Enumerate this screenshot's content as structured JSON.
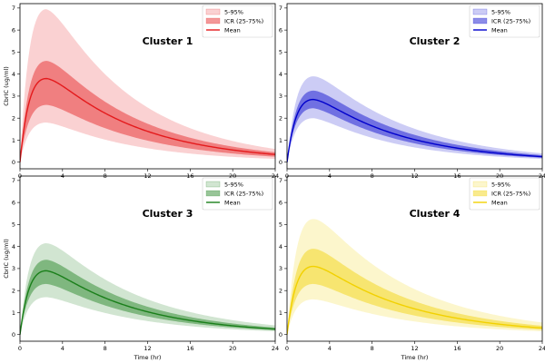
{
  "chart_data": {
    "type": "area",
    "layout": "2x2 grid",
    "xlabel": "Time (hr)",
    "ylabel": "CbrIC (ug/ml)",
    "xlim": [
      0,
      24
    ],
    "ylim": [
      -0.3,
      7.2
    ],
    "xticks": [
      0,
      4,
      8,
      12,
      16,
      20,
      24
    ],
    "yticks": [
      0,
      1,
      2,
      3,
      4,
      5,
      6,
      7
    ],
    "legend": {
      "position": "top-right",
      "entries": [
        "5-95%",
        "ICR (25-75%)",
        "Mean"
      ]
    },
    "panels": [
      {
        "title": "Cluster 1",
        "color": "#e41a1c",
        "peak_time": 2.5,
        "series": [
          {
            "name": "Mean",
            "cmax": 3.8,
            "end_value": 0.35
          },
          {
            "name": "ICR (25-75%)",
            "cmax_lower": 2.6,
            "cmax_upper": 4.6,
            "end_lower": 0.25,
            "end_upper": 0.45
          },
          {
            "name": "5-95%",
            "cmax_lower": 1.8,
            "cmax_upper": 6.95,
            "end_lower": 0.15,
            "end_upper": 0.6
          }
        ]
      },
      {
        "title": "Cluster 2",
        "color": "#0000cc",
        "peak_time": 2.5,
        "series": [
          {
            "name": "Mean",
            "cmax": 2.85,
            "end_value": 0.25
          },
          {
            "name": "ICR (25-75%)",
            "cmax_lower": 2.45,
            "cmax_upper": 3.25,
            "end_lower": 0.2,
            "end_upper": 0.32
          },
          {
            "name": "5-95%",
            "cmax_lower": 2.0,
            "cmax_upper": 3.9,
            "end_lower": 0.15,
            "end_upper": 0.4
          }
        ]
      },
      {
        "title": "Cluster 3",
        "color": "#1a7f1a",
        "peak_time": 2.5,
        "series": [
          {
            "name": "Mean",
            "cmax": 2.9,
            "end_value": 0.25
          },
          {
            "name": "ICR (25-75%)",
            "cmax_lower": 2.3,
            "cmax_upper": 3.4,
            "end_lower": 0.2,
            "end_upper": 0.32
          },
          {
            "name": "5-95%",
            "cmax_lower": 1.7,
            "cmax_upper": 4.15,
            "end_lower": 0.15,
            "end_upper": 0.42
          }
        ]
      },
      {
        "title": "Cluster 4",
        "color": "#f2d100",
        "peak_time": 2.5,
        "series": [
          {
            "name": "Mean",
            "cmax": 3.1,
            "end_value": 0.3
          },
          {
            "name": "ICR (25-75%)",
            "cmax_lower": 2.3,
            "cmax_upper": 3.9,
            "end_lower": 0.22,
            "end_upper": 0.4
          },
          {
            "name": "5-95%",
            "cmax_lower": 1.6,
            "cmax_upper": 5.25,
            "end_lower": 0.15,
            "end_upper": 0.55
          }
        ]
      }
    ]
  }
}
